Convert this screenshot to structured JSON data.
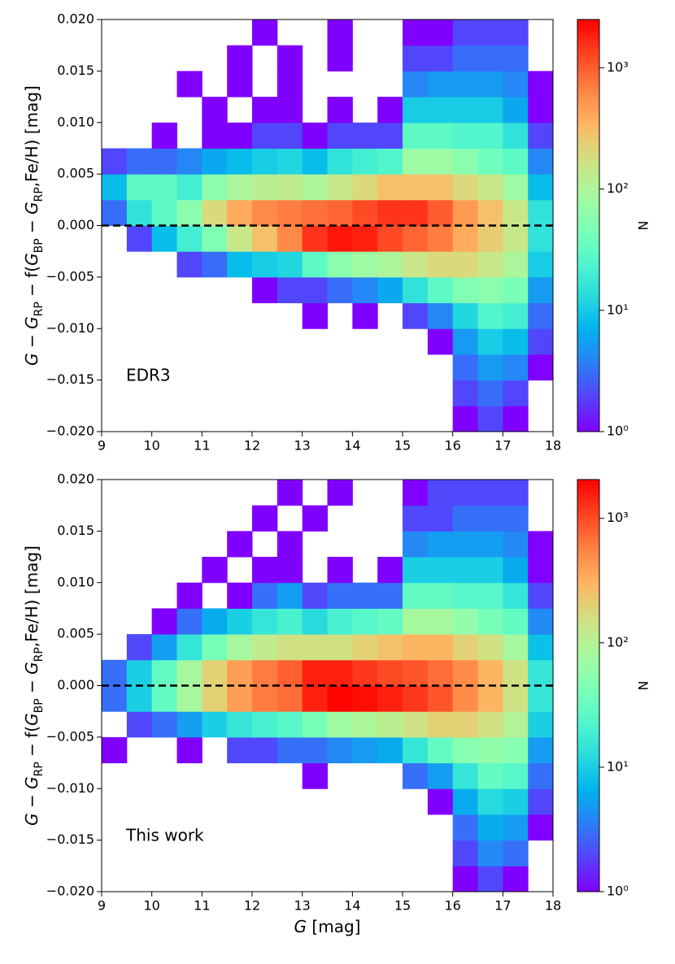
{
  "chart_data": [
    {
      "type": "hist2d",
      "ylabel": [
        {
          "text": "G",
          "font": "italic"
        },
        {
          "text": " − ",
          "font": "normal"
        },
        {
          "text": "G",
          "font": "italic"
        },
        {
          "text": "RP",
          "font": "sub"
        },
        {
          "text": " − f(",
          "font": "normal"
        },
        {
          "text": "G",
          "font": "italic"
        },
        {
          "text": "BP",
          "font": "sub"
        },
        {
          "text": " − ",
          "font": "normal"
        },
        {
          "text": "G",
          "font": "italic"
        },
        {
          "text": "RP",
          "font": "sub"
        },
        {
          "text": ",Fe/H) [mag]",
          "font": "normal"
        }
      ],
      "annotation": "EDR3",
      "colorbar_label": "N",
      "xlim": [
        9,
        18
      ],
      "xticks": [
        9,
        10,
        11,
        12,
        13,
        14,
        15,
        16,
        17,
        18
      ],
      "ylim": [
        -0.02,
        0.02
      ],
      "yticks": [
        {
          "value": -0.02,
          "label": "−0.020"
        },
        {
          "value": -0.015,
          "label": "−0.015"
        },
        {
          "value": -0.01,
          "label": "−0.010"
        },
        {
          "value": -0.005,
          "label": "−0.005"
        },
        {
          "value": 0,
          "label": "0.000"
        },
        {
          "value": 0.005,
          "label": "0.005"
        },
        {
          "value": 0.01,
          "label": "0.010"
        },
        {
          "value": 0.015,
          "label": "0.015"
        },
        {
          "value": 0.02,
          "label": "0.020"
        }
      ],
      "hline": 0,
      "hline_color": "#000000",
      "colormap": "rainbow",
      "color_scale": "log",
      "clim": [
        1,
        2500
      ],
      "cticks": [
        {
          "value": 1,
          "label": "10⁰"
        },
        {
          "value": 10,
          "label": "10¹"
        },
        {
          "value": 100,
          "label": "10²"
        },
        {
          "value": 1000,
          "label": "10³"
        }
      ],
      "xbins": [
        9,
        9.5,
        10,
        10.5,
        11,
        11.5,
        12,
        12.5,
        13,
        13.5,
        14,
        14.5,
        15,
        15.5,
        16,
        16.5,
        17,
        17.5,
        18
      ],
      "ybins": [
        -0.02,
        -0.0175,
        -0.015,
        -0.0125,
        -0.01,
        -0.0075,
        -0.005,
        -0.0025,
        0,
        0.0025,
        0.005,
        0.0075,
        0.01,
        0.0125,
        0.015,
        0.0175,
        0.02
      ],
      "z": [
        [
          null,
          null,
          null,
          null,
          null,
          null,
          null,
          null,
          null,
          null,
          null,
          null,
          null,
          null,
          1,
          2,
          1,
          null
        ],
        [
          null,
          null,
          null,
          null,
          null,
          null,
          null,
          null,
          null,
          null,
          null,
          null,
          null,
          null,
          2,
          3,
          2,
          null
        ],
        [
          null,
          null,
          null,
          null,
          null,
          null,
          null,
          null,
          null,
          null,
          null,
          null,
          null,
          null,
          3,
          5,
          4,
          1
        ],
        [
          null,
          null,
          null,
          null,
          null,
          null,
          null,
          null,
          null,
          null,
          null,
          null,
          null,
          1,
          5,
          10,
          8,
          2
        ],
        [
          null,
          null,
          null,
          null,
          null,
          null,
          null,
          null,
          1,
          null,
          1,
          null,
          2,
          4,
          12,
          25,
          20,
          3
        ],
        [
          null,
          null,
          null,
          null,
          null,
          null,
          1,
          2,
          2,
          3,
          4,
          6,
          15,
          30,
          50,
          60,
          45,
          5
        ],
        [
          null,
          null,
          null,
          2,
          3,
          8,
          10,
          12,
          30,
          60,
          80,
          100,
          150,
          200,
          200,
          150,
          100,
          10
        ],
        [
          null,
          2,
          8,
          20,
          50,
          150,
          300,
          600,
          1500,
          2000,
          1800,
          1200,
          900,
          700,
          400,
          250,
          150,
          15
        ],
        [
          3,
          15,
          30,
          60,
          200,
          400,
          600,
          700,
          800,
          900,
          1200,
          1500,
          1500,
          1000,
          500,
          300,
          150,
          15
        ],
        [
          8,
          30,
          30,
          20,
          60,
          100,
          120,
          130,
          100,
          150,
          200,
          300,
          300,
          300,
          200,
          150,
          80,
          8
        ],
        [
          2,
          3,
          3,
          4,
          6,
          8,
          10,
          12,
          8,
          15,
          20,
          25,
          80,
          80,
          60,
          40,
          30,
          4
        ],
        [
          null,
          null,
          1,
          null,
          1,
          1,
          2,
          2,
          1,
          2,
          2,
          2,
          30,
          30,
          25,
          25,
          15,
          2
        ],
        [
          null,
          null,
          null,
          null,
          1,
          null,
          1,
          1,
          null,
          1,
          null,
          1,
          10,
          10,
          10,
          10,
          6,
          1
        ],
        [
          null,
          null,
          null,
          1,
          null,
          1,
          null,
          1,
          null,
          null,
          null,
          null,
          4,
          5,
          5,
          5,
          4,
          1
        ],
        [
          null,
          null,
          null,
          null,
          null,
          1,
          null,
          1,
          null,
          1,
          null,
          null,
          2,
          2,
          3,
          3,
          3,
          null
        ],
        [
          null,
          null,
          null,
          null,
          null,
          null,
          1,
          null,
          null,
          1,
          null,
          null,
          1,
          1,
          2,
          2,
          2,
          null
        ]
      ]
    },
    {
      "type": "hist2d",
      "ylabel": [
        {
          "text": "G",
          "font": "italic"
        },
        {
          "text": " − ",
          "font": "normal"
        },
        {
          "text": "G",
          "font": "italic"
        },
        {
          "text": "RP",
          "font": "sub"
        },
        {
          "text": " − f(",
          "font": "normal"
        },
        {
          "text": "G",
          "font": "italic"
        },
        {
          "text": "BP",
          "font": "sub"
        },
        {
          "text": " − ",
          "font": "normal"
        },
        {
          "text": "G",
          "font": "italic"
        },
        {
          "text": "RP",
          "font": "sub"
        },
        {
          "text": ",Fe/H) [mag]",
          "font": "normal"
        }
      ],
      "xlabel": [
        {
          "text": "G",
          "font": "italic"
        },
        {
          "text": " [mag]",
          "font": "normal"
        }
      ],
      "annotation": "This work",
      "colorbar_label": "N",
      "xlim": [
        9,
        18
      ],
      "xticks": [
        9,
        10,
        11,
        12,
        13,
        14,
        15,
        16,
        17,
        18
      ],
      "ylim": [
        -0.02,
        0.02
      ],
      "yticks": [
        {
          "value": -0.02,
          "label": "−0.020"
        },
        {
          "value": -0.015,
          "label": "−0.015"
        },
        {
          "value": -0.01,
          "label": "−0.010"
        },
        {
          "value": -0.005,
          "label": "−0.005"
        },
        {
          "value": 0,
          "label": "0.000"
        },
        {
          "value": 0.005,
          "label": "0.005"
        },
        {
          "value": 0.01,
          "label": "0.010"
        },
        {
          "value": 0.015,
          "label": "0.015"
        },
        {
          "value": 0.02,
          "label": "0.020"
        }
      ],
      "hline": 0,
      "hline_color": "#000000",
      "colormap": "rainbow",
      "color_scale": "log",
      "clim": [
        1,
        2050
      ],
      "cticks": [
        {
          "value": 1,
          "label": "10⁰"
        },
        {
          "value": 10,
          "label": "10¹"
        },
        {
          "value": 100,
          "label": "10²"
        },
        {
          "value": 1000,
          "label": "10³"
        }
      ],
      "xbins": [
        9,
        9.5,
        10,
        10.5,
        11,
        11.5,
        12,
        12.5,
        13,
        13.5,
        14,
        14.5,
        15,
        15.5,
        16,
        16.5,
        17,
        17.5,
        18
      ],
      "ybins": [
        -0.02,
        -0.0175,
        -0.015,
        -0.0125,
        -0.01,
        -0.0075,
        -0.005,
        -0.0025,
        0,
        0.0025,
        0.005,
        0.0075,
        0.01,
        0.0125,
        0.015,
        0.0175,
        0.02
      ],
      "z": [
        [
          null,
          null,
          null,
          null,
          null,
          null,
          null,
          null,
          null,
          null,
          null,
          null,
          null,
          null,
          1,
          2,
          1,
          null
        ],
        [
          null,
          null,
          null,
          null,
          null,
          null,
          null,
          null,
          null,
          null,
          null,
          null,
          null,
          null,
          2,
          4,
          3,
          null
        ],
        [
          null,
          null,
          null,
          null,
          null,
          null,
          null,
          null,
          null,
          null,
          null,
          null,
          null,
          null,
          3,
          6,
          5,
          1
        ],
        [
          null,
          null,
          null,
          null,
          null,
          null,
          null,
          null,
          null,
          null,
          null,
          null,
          null,
          1,
          6,
          12,
          10,
          2
        ],
        [
          null,
          null,
          null,
          null,
          null,
          null,
          null,
          null,
          1,
          null,
          null,
          null,
          3,
          5,
          15,
          30,
          25,
          3
        ],
        [
          1,
          null,
          null,
          1,
          null,
          2,
          2,
          3,
          3,
          4,
          5,
          6,
          15,
          30,
          50,
          60,
          50,
          5
        ],
        [
          null,
          2,
          3,
          5,
          10,
          15,
          20,
          25,
          40,
          70,
          90,
          110,
          150,
          200,
          200,
          150,
          100,
          10
        ],
        [
          3,
          10,
          30,
          80,
          200,
          400,
          600,
          700,
          1500,
          2000,
          1800,
          1500,
          1200,
          900,
          500,
          300,
          150,
          15
        ],
        [
          3,
          10,
          30,
          80,
          200,
          400,
          600,
          800,
          1500,
          1500,
          1200,
          1000,
          900,
          700,
          500,
          300,
          150,
          15
        ],
        [
          null,
          2,
          5,
          15,
          40,
          80,
          120,
          150,
          150,
          150,
          200,
          250,
          300,
          300,
          200,
          150,
          80,
          8
        ],
        [
          null,
          null,
          1,
          3,
          6,
          10,
          15,
          20,
          12,
          20,
          25,
          30,
          80,
          80,
          60,
          40,
          30,
          4
        ],
        [
          null,
          null,
          null,
          1,
          null,
          1,
          3,
          5,
          2,
          3,
          3,
          3,
          30,
          30,
          25,
          25,
          15,
          2
        ],
        [
          null,
          null,
          null,
          null,
          1,
          null,
          1,
          1,
          null,
          1,
          null,
          1,
          10,
          10,
          10,
          10,
          6,
          1
        ],
        [
          null,
          null,
          null,
          null,
          null,
          1,
          null,
          1,
          null,
          null,
          null,
          null,
          4,
          5,
          5,
          5,
          4,
          1
        ],
        [
          null,
          null,
          null,
          null,
          null,
          null,
          1,
          null,
          1,
          null,
          null,
          null,
          2,
          2,
          3,
          3,
          3,
          null
        ],
        [
          null,
          null,
          null,
          null,
          null,
          null,
          null,
          1,
          null,
          1,
          null,
          null,
          1,
          2,
          2,
          2,
          2,
          null
        ]
      ]
    }
  ]
}
